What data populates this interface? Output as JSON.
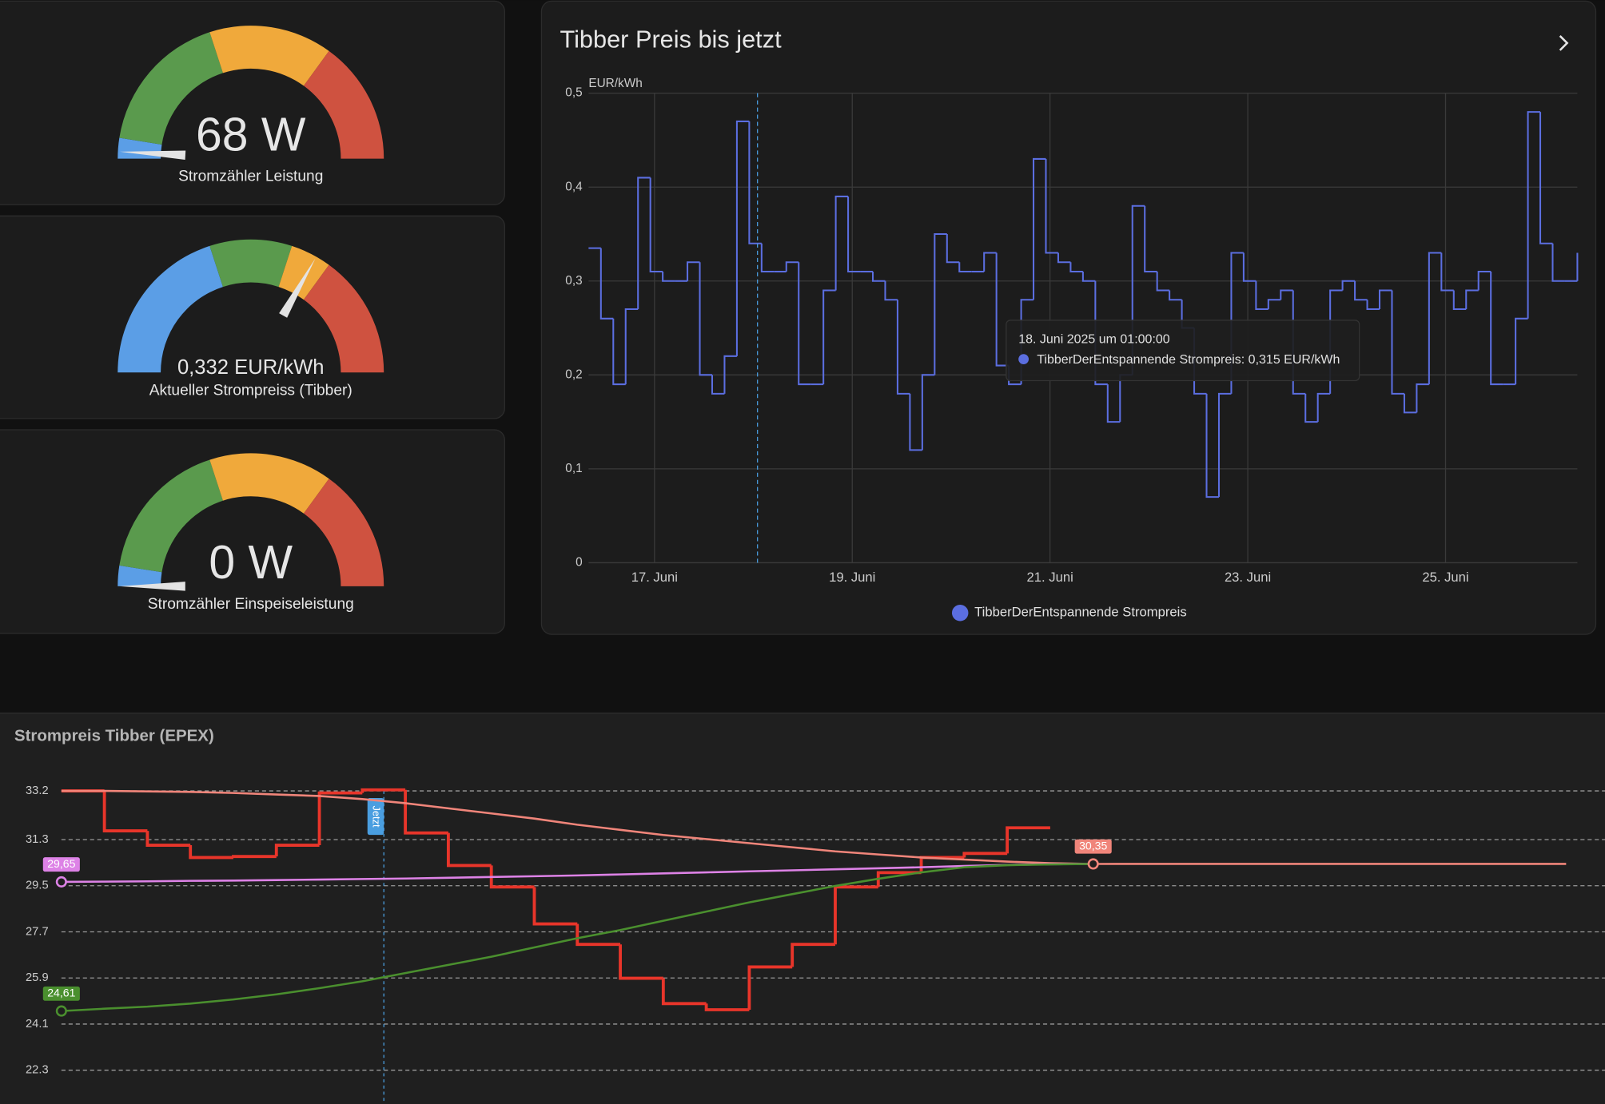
{
  "gauges": [
    {
      "value": 68,
      "value_label": "68 W",
      "label": "Stromzähler Leistung",
      "range": [
        0,
        4000
      ],
      "segments": [
        {
          "from": 0,
          "to": 200,
          "color": "#5b9ee6"
        },
        {
          "from": 200,
          "to": 1600,
          "color": "#5a9a4d"
        },
        {
          "from": 1600,
          "to": 2800,
          "color": "#f0a93b"
        },
        {
          "from": 2800,
          "to": 4000,
          "color": "#cf5240"
        }
      ]
    },
    {
      "value": 0.332,
      "value_label": "0,332 EUR/kWh",
      "label": "Aktueller Strompreiss (Tibber)",
      "range": [
        0,
        0.5
      ],
      "segments": [
        {
          "from": 0,
          "to": 0.2,
          "color": "#5b9ee6"
        },
        {
          "from": 0.2,
          "to": 0.3,
          "color": "#5a9a4d"
        },
        {
          "from": 0.3,
          "to": 0.35,
          "color": "#f0a93b"
        },
        {
          "from": 0.35,
          "to": 0.5,
          "color": "#cf5240"
        }
      ]
    },
    {
      "value": 0,
      "value_label": "0 W",
      "label": "Stromzähler Einspeiseleistung",
      "range": [
        0,
        4000
      ],
      "segments": [
        {
          "from": 0,
          "to": 200,
          "color": "#5b9ee6"
        },
        {
          "from": 200,
          "to": 1600,
          "color": "#5a9a4d"
        },
        {
          "from": 1600,
          "to": 2800,
          "color": "#f0a93b"
        },
        {
          "from": 2800,
          "to": 4000,
          "color": "#cf5240"
        }
      ]
    }
  ],
  "chart_data": [
    {
      "type": "line",
      "title": "Tibber Preis bis jetzt",
      "y_label": "EUR/kWh",
      "x": [
        "2025-06-16T08:00",
        "2025-06-16T11:00",
        "2025-06-16T14:00",
        "2025-06-16T17:00",
        "2025-06-16T20:00",
        "2025-06-16T23:00",
        "2025-06-17T02:00",
        "2025-06-17T05:00",
        "2025-06-17T08:00",
        "2025-06-17T11:00",
        "2025-06-17T14:00",
        "2025-06-17T17:00",
        "2025-06-17T20:00",
        "2025-06-17T23:00",
        "2025-06-18T02:00",
        "2025-06-18T05:00",
        "2025-06-18T08:00",
        "2025-06-18T11:00",
        "2025-06-18T14:00",
        "2025-06-18T17:00",
        "2025-06-18T20:00",
        "2025-06-18T23:00",
        "2025-06-19T02:00",
        "2025-06-19T05:00",
        "2025-06-19T08:00",
        "2025-06-19T11:00",
        "2025-06-19T14:00",
        "2025-06-19T17:00",
        "2025-06-19T20:00",
        "2025-06-19T23:00",
        "2025-06-20T02:00",
        "2025-06-20T05:00",
        "2025-06-20T08:00",
        "2025-06-20T11:00",
        "2025-06-20T14:00",
        "2025-06-20T17:00",
        "2025-06-20T20:00",
        "2025-06-20T23:00",
        "2025-06-21T02:00",
        "2025-06-21T05:00",
        "2025-06-21T08:00",
        "2025-06-21T11:00",
        "2025-06-21T14:00",
        "2025-06-21T17:00",
        "2025-06-21T20:00",
        "2025-06-21T23:00",
        "2025-06-22T02:00",
        "2025-06-22T05:00",
        "2025-06-22T08:00",
        "2025-06-22T11:00",
        "2025-06-22T14:00",
        "2025-06-22T17:00",
        "2025-06-22T20:00",
        "2025-06-22T23:00",
        "2025-06-23T02:00",
        "2025-06-23T05:00",
        "2025-06-23T08:00",
        "2025-06-23T11:00",
        "2025-06-23T14:00",
        "2025-06-23T17:00",
        "2025-06-23T20:00",
        "2025-06-23T23:00",
        "2025-06-24T02:00",
        "2025-06-24T05:00",
        "2025-06-24T08:00",
        "2025-06-24T11:00",
        "2025-06-24T14:00",
        "2025-06-24T17:00",
        "2025-06-24T20:00",
        "2025-06-24T23:00",
        "2025-06-25T02:00",
        "2025-06-25T05:00",
        "2025-06-25T08:00",
        "2025-06-25T11:00",
        "2025-06-25T14:00",
        "2025-06-25T17:00",
        "2025-06-25T20:00",
        "2025-06-25T23:00",
        "2025-06-26T02:00",
        "2025-06-26T05:00",
        "2025-06-26T08:00"
      ],
      "series": [
        {
          "name": "TibberDerEntspannende Strompreis",
          "color": "#5b6ee0",
          "shape": "step",
          "values": [
            0.335,
            0.26,
            0.19,
            0.27,
            0.41,
            0.31,
            0.3,
            0.3,
            0.32,
            0.2,
            0.18,
            0.22,
            0.47,
            0.34,
            0.31,
            0.31,
            0.32,
            0.19,
            0.19,
            0.29,
            0.39,
            0.31,
            0.31,
            0.3,
            0.28,
            0.18,
            0.12,
            0.2,
            0.35,
            0.32,
            0.31,
            0.31,
            0.33,
            0.21,
            0.19,
            0.28,
            0.43,
            0.33,
            0.32,
            0.31,
            0.3,
            0.19,
            0.15,
            0.2,
            0.38,
            0.31,
            0.29,
            0.28,
            0.25,
            0.18,
            0.07,
            0.18,
            0.33,
            0.3,
            0.27,
            0.28,
            0.29,
            0.18,
            0.15,
            0.18,
            0.29,
            0.3,
            0.28,
            0.27,
            0.29,
            0.18,
            0.16,
            0.19,
            0.33,
            0.29,
            0.27,
            0.29,
            0.31,
            0.19,
            0.19,
            0.26,
            0.48,
            0.34,
            0.3,
            0.3,
            0.33
          ]
        }
      ],
      "xlim": [
        "2025-06-16T08:00",
        "2025-06-26T08:00"
      ],
      "xticks": [
        {
          "value": "2025-06-17T00:00",
          "label": "17. Juni"
        },
        {
          "value": "2025-06-19T00:00",
          "label": "19. Juni"
        },
        {
          "value": "2025-06-21T00:00",
          "label": "21. Juni"
        },
        {
          "value": "2025-06-23T00:00",
          "label": "23. Juni"
        },
        {
          "value": "2025-06-25T00:00",
          "label": "25. Juni"
        }
      ],
      "ylim": [
        0,
        0.5
      ],
      "yticks": [
        0,
        {
          "value": 0.1,
          "label": "0,1"
        },
        {
          "value": 0.2,
          "label": "0,2"
        },
        {
          "value": 0.3,
          "label": "0,3"
        },
        {
          "value": 0.4,
          "label": "0,4"
        },
        {
          "value": 0.5,
          "label": "0,5"
        }
      ],
      "grid": true,
      "tooltip": {
        "x": "2025-06-18T01:00",
        "title": "18. Juni 2025 um 01:00:00",
        "text": "TibberDerEntspannende Strompreis: 0,315 EUR/kWh"
      }
    },
    {
      "type": "line",
      "title": "Strompreis Tibber (EPEX)",
      "categories": [
        null,
        null,
        null,
        null,
        null,
        null,
        null,
        null,
        null,
        null,
        null,
        null,
        null,
        null,
        null,
        null,
        null,
        null,
        null,
        null,
        null,
        null,
        null,
        null,
        null,
        null,
        null,
        null,
        null,
        null,
        null,
        null,
        null,
        null,
        null,
        null
      ],
      "series": [
        {
          "color": "#e8352a",
          "shape": "step",
          "values": [
            33.2,
            31.64,
            31.08,
            30.6,
            30.64,
            31.08,
            33.12,
            33.24,
            31.56,
            30.29,
            29.45,
            28.01,
            27.21,
            25.89,
            24.9,
            24.66,
            26.33,
            27.21,
            29.45,
            30.01,
            30.6,
            30.76,
            31.76,
            null,
            null,
            null,
            null,
            null,
            null,
            null,
            null,
            null,
            null,
            null,
            null,
            null
          ]
        },
        {
          "color": "#f0857a",
          "shape": "smooth",
          "values": [
            33.2,
            33.2,
            33.18,
            33.16,
            33.12,
            33.06,
            33.0,
            32.88,
            32.72,
            32.52,
            32.32,
            32.12,
            31.88,
            31.68,
            31.48,
            31.32,
            31.16,
            31.0,
            30.84,
            30.72,
            30.6,
            30.52,
            30.44,
            30.38,
            30.35,
            30.35,
            30.35,
            30.35,
            30.35,
            30.35,
            30.35,
            30.35,
            30.35,
            30.35,
            30.35,
            30.35
          ],
          "value_labels": [
            null,
            null,
            null,
            null,
            null,
            null,
            null,
            null,
            null,
            null,
            null,
            null,
            null,
            null,
            null,
            null,
            null,
            null,
            null,
            null,
            null,
            null,
            null,
            null,
            "30,35",
            null,
            null,
            null,
            null,
            null,
            null,
            null,
            null,
            null,
            null,
            null
          ]
        },
        {
          "color": "#dd82e6",
          "shape": "smooth",
          "values": [
            29.65,
            29.66,
            29.67,
            29.69,
            29.7,
            29.72,
            29.74,
            29.76,
            29.78,
            29.81,
            29.84,
            29.87,
            29.9,
            29.94,
            29.98,
            30.02,
            30.06,
            30.1,
            30.14,
            30.18,
            30.22,
            30.27,
            30.31,
            30.34,
            30.35,
            null,
            null,
            null,
            null,
            null,
            null,
            null,
            null,
            null,
            null,
            null
          ],
          "value_labels": [
            "29,65",
            null,
            null,
            null,
            null,
            null,
            null,
            null,
            null,
            null,
            null,
            null,
            null,
            null,
            null,
            null,
            null,
            null,
            null,
            null,
            null,
            null,
            null,
            null,
            null,
            null,
            null,
            null,
            null,
            null,
            null,
            null,
            null,
            null,
            null,
            null
          ]
        },
        {
          "color": "#4a8f2e",
          "shape": "smooth",
          "values": [
            24.61,
            24.7,
            24.78,
            24.9,
            25.06,
            25.26,
            25.5,
            25.77,
            26.09,
            26.41,
            26.73,
            27.09,
            27.45,
            27.77,
            28.13,
            28.49,
            28.85,
            29.17,
            29.49,
            29.77,
            30.02,
            30.22,
            30.3,
            30.33,
            30.35,
            null,
            null,
            null,
            null,
            null,
            null,
            null,
            null,
            null,
            null,
            null
          ],
          "value_labels": [
            "24,61",
            null,
            null,
            null,
            null,
            null,
            null,
            null,
            null,
            null,
            null,
            null,
            null,
            null,
            null,
            null,
            null,
            null,
            null,
            null,
            null,
            null,
            null,
            null,
            null,
            null,
            null,
            null,
            null,
            null,
            null,
            null,
            null,
            null,
            null,
            null
          ]
        }
      ],
      "ylim": [
        21.2,
        33.6
      ],
      "yticks": [
        33.2,
        31.3,
        29.5,
        27.7,
        25.9,
        24.1,
        22.3
      ],
      "grid": true,
      "annotations": [
        {
          "text": "Jetzt",
          "category": 7,
          "color": "#4a9ee0"
        }
      ]
    }
  ]
}
